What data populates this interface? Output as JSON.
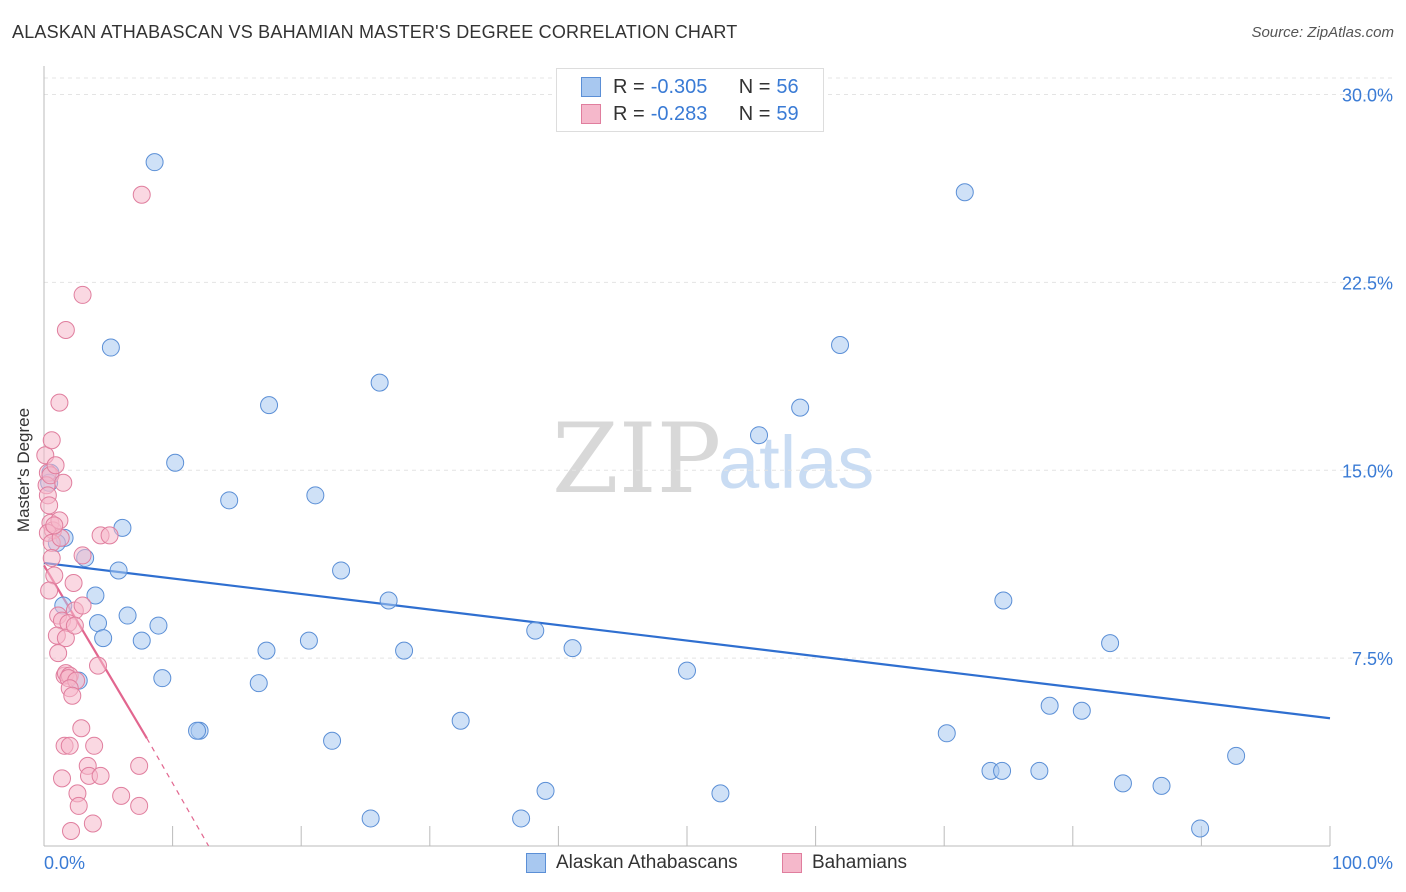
{
  "header": {
    "title": "ALASKAN ATHABASCAN VS BAHAMIAN MASTER'S DEGREE CORRELATION CHART",
    "source": "Source: ZipAtlas.com"
  },
  "watermark": {
    "zip": "ZIP",
    "atlas": "atlas"
  },
  "legend": {
    "rows": [
      {
        "r_label": "R = ",
        "r_value": "-0.305",
        "n_label": "N = ",
        "n_value": "56",
        "color": "#a8c8f0"
      },
      {
        "r_label": "R = ",
        "r_value": "-0.283",
        "n_label": "N = ",
        "n_value": "59",
        "color": "#f5b8cb"
      }
    ]
  },
  "chart_data": {
    "type": "scatter",
    "title": "ALASKAN ATHABASCAN VS BAHAMIAN MASTER'S DEGREE CORRELATION CHART",
    "xlabel": "",
    "ylabel": "Master's Degree",
    "xlim": [
      0,
      100
    ],
    "ylim": [
      0,
      30.9
    ],
    "x_ticks": [
      0,
      10,
      20,
      30,
      40,
      50,
      60,
      70,
      80,
      90,
      100
    ],
    "x_tick_labels": [
      "0.0%",
      "100.0%"
    ],
    "y_ticks": [
      7.5,
      15.0,
      22.5,
      30.0
    ],
    "y_tick_labels": [
      "7.5%",
      "15.0%",
      "22.5%",
      "30.0%"
    ],
    "grid": true,
    "series": [
      {
        "name": "Alaskan Athabascans",
        "color": "#a8c8f0",
        "stroke": "#5b8fd6",
        "trend_color": "#2f6fd0",
        "trend": {
          "x0": 0,
          "y0": 11.3,
          "x1": 100,
          "y1": 5.1
        },
        "points": [
          [
            8.6,
            27.3
          ],
          [
            71.6,
            26.1
          ],
          [
            5.2,
            19.9
          ],
          [
            61.9,
            20.0
          ],
          [
            26.1,
            18.5
          ],
          [
            17.5,
            17.6
          ],
          [
            58.8,
            17.5
          ],
          [
            55.6,
            16.4
          ],
          [
            10.2,
            15.3
          ],
          [
            21.1,
            14.0
          ],
          [
            14.4,
            13.8
          ],
          [
            6.1,
            12.7
          ],
          [
            1.6,
            12.3
          ],
          [
            1.0,
            12.1
          ],
          [
            3.2,
            11.5
          ],
          [
            5.8,
            11.0
          ],
          [
            23.1,
            11.0
          ],
          [
            26.8,
            9.8
          ],
          [
            74.6,
            9.8
          ],
          [
            4.0,
            10.0
          ],
          [
            1.5,
            9.6
          ],
          [
            6.5,
            9.2
          ],
          [
            4.2,
            8.9
          ],
          [
            8.9,
            8.8
          ],
          [
            38.2,
            8.6
          ],
          [
            4.6,
            8.3
          ],
          [
            7.6,
            8.2
          ],
          [
            20.6,
            8.2
          ],
          [
            82.9,
            8.1
          ],
          [
            41.1,
            7.9
          ],
          [
            17.3,
            7.8
          ],
          [
            28.0,
            7.8
          ],
          [
            50.0,
            7.0
          ],
          [
            2.7,
            6.6
          ],
          [
            9.2,
            6.7
          ],
          [
            16.7,
            6.5
          ],
          [
            78.2,
            5.6
          ],
          [
            80.7,
            5.4
          ],
          [
            32.4,
            5.0
          ],
          [
            12.1,
            4.6
          ],
          [
            11.9,
            4.6
          ],
          [
            70.2,
            4.5
          ],
          [
            22.4,
            4.2
          ],
          [
            92.7,
            3.6
          ],
          [
            73.6,
            3.0
          ],
          [
            74.5,
            3.0
          ],
          [
            77.4,
            3.0
          ],
          [
            83.9,
            2.5
          ],
          [
            86.9,
            2.4
          ],
          [
            39.0,
            2.2
          ],
          [
            52.6,
            2.1
          ],
          [
            25.4,
            1.1
          ],
          [
            37.1,
            1.1
          ],
          [
            89.9,
            0.7
          ],
          [
            0.5,
            14.9
          ],
          [
            0.4,
            14.5
          ]
        ]
      },
      {
        "name": "Bahamians",
        "color": "#f5b8cb",
        "stroke": "#e07e9e",
        "trend_color": "#e2668f",
        "trend": {
          "x0": 0,
          "y0": 11.2,
          "x1": 8.0,
          "y1": 4.3
        },
        "trend_ext": {
          "x0": 8.0,
          "y0": 4.3,
          "x1": 12.8,
          "y1": 0.0
        },
        "points": [
          [
            7.6,
            26.0
          ],
          [
            3.0,
            22.0
          ],
          [
            1.7,
            20.6
          ],
          [
            1.2,
            17.7
          ],
          [
            0.1,
            15.6
          ],
          [
            0.6,
            16.2
          ],
          [
            0.3,
            14.9
          ],
          [
            0.2,
            14.4
          ],
          [
            0.5,
            14.8
          ],
          [
            0.3,
            14.0
          ],
          [
            1.5,
            14.5
          ],
          [
            0.4,
            13.6
          ],
          [
            0.5,
            12.9
          ],
          [
            0.7,
            12.6
          ],
          [
            0.3,
            12.5
          ],
          [
            0.6,
            12.1
          ],
          [
            1.3,
            12.3
          ],
          [
            4.4,
            12.4
          ],
          [
            5.1,
            12.4
          ],
          [
            3.0,
            11.6
          ],
          [
            0.8,
            10.8
          ],
          [
            2.3,
            10.5
          ],
          [
            1.1,
            9.2
          ],
          [
            2.4,
            9.4
          ],
          [
            3.0,
            9.6
          ],
          [
            1.4,
            9.0
          ],
          [
            1.9,
            8.9
          ],
          [
            1.0,
            8.4
          ],
          [
            1.7,
            8.3
          ],
          [
            1.1,
            7.7
          ],
          [
            4.2,
            7.2
          ],
          [
            1.6,
            6.8
          ],
          [
            1.7,
            6.9
          ],
          [
            2.0,
            6.8
          ],
          [
            1.9,
            6.7
          ],
          [
            2.5,
            6.6
          ],
          [
            2.0,
            6.3
          ],
          [
            2.2,
            6.0
          ],
          [
            2.9,
            4.7
          ],
          [
            1.6,
            4.0
          ],
          [
            2.0,
            4.0
          ],
          [
            3.9,
            4.0
          ],
          [
            7.4,
            3.2
          ],
          [
            3.4,
            3.2
          ],
          [
            3.5,
            2.8
          ],
          [
            4.4,
            2.8
          ],
          [
            1.4,
            2.7
          ],
          [
            2.6,
            2.1
          ],
          [
            6.0,
            2.0
          ],
          [
            2.7,
            1.6
          ],
          [
            7.4,
            1.6
          ],
          [
            3.8,
            0.9
          ],
          [
            2.1,
            0.6
          ],
          [
            0.6,
            11.5
          ],
          [
            0.4,
            10.2
          ],
          [
            1.2,
            13.0
          ],
          [
            0.8,
            12.8
          ],
          [
            2.4,
            8.8
          ],
          [
            0.9,
            15.2
          ]
        ]
      }
    ]
  }
}
